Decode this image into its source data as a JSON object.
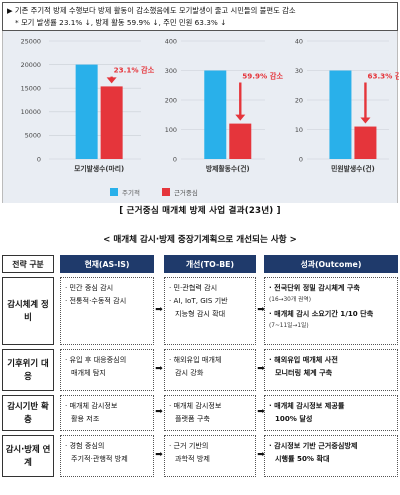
{
  "summary": {
    "line1": "▶ 기존 주기적 방제 수행보다 방제 활동이 감소했음에도 모기발생이 줄고 시민들의 불편도 감소",
    "line2": "* 모기 발생률 23.1% ↓, 방제 활동 59.9% ↓, 주민 민원 63.3% ↓"
  },
  "chart_data": [
    {
      "type": "bar",
      "title": "",
      "xlabel": "모기발생수(마리)",
      "ylabel": "",
      "ylim": [
        0,
        25000
      ],
      "yticks": [
        "0",
        "5000",
        "10000",
        "15000",
        "20000",
        "25000"
      ],
      "categories": [
        "주기적",
        "근거중심"
      ],
      "values": [
        20000,
        15380
      ],
      "annotation": "23.1% 감소"
    },
    {
      "type": "bar",
      "title": "",
      "xlabel": "방제활동수(건)",
      "ylabel": "",
      "ylim": [
        0,
        400
      ],
      "yticks": [
        "0",
        "100",
        "200",
        "300",
        "400"
      ],
      "categories": [
        "주기적",
        "근거중심"
      ],
      "values": [
        300,
        120
      ],
      "annotation": "59.9% 감소"
    },
    {
      "type": "bar",
      "title": "",
      "xlabel": "민원발생수(건)",
      "ylabel": "",
      "ylim": [
        0,
        40
      ],
      "yticks": [
        "0",
        "10",
        "20",
        "30",
        "40"
      ],
      "categories": [
        "주기적",
        "근거중심"
      ],
      "values": [
        30,
        11
      ],
      "annotation": "63.3% 감소"
    }
  ],
  "legend": [
    {
      "label": "주기적",
      "color": "#29b0ea"
    },
    {
      "label": "근거중심",
      "color": "#e5353b"
    }
  ],
  "caption": "[ 근거중심 매개체 방제 사업 결과(23년) ]",
  "subtitle": "< 매개체 감시·방제 중장기계획으로 개선되는 사항 >",
  "table": {
    "headers": [
      "전략 구분",
      "현재(AS-IS)",
      "개선(TO-BE)",
      "성과(Outcome)"
    ],
    "rows": [
      {
        "category": "감시체계 정비",
        "now": [
          "· 민간 중심 감시",
          "· 전통적·수동적 감시"
        ],
        "dev": [
          "· 민·관협력 감시",
          "· AI, IoT, GIS 기반",
          "지능형 감시 확대"
        ],
        "out": [
          "· 전국단위 정밀 감시체계 구축",
          "(16→30개 권역)",
          "· 매개체 감시 소요기간 1/10 단축",
          "(7~11일→1일)"
        ]
      },
      {
        "category": "기후위기 대응",
        "now": [
          "· 유입 후 대응중심의",
          "매개체 탐지"
        ],
        "dev": [
          "· 해외유입 매개체",
          "감시 강화"
        ],
        "out": [
          "· 해외유입 매개체 사전",
          "모니터링 체계 구축"
        ]
      },
      {
        "category": "감시기반 확충",
        "now": [
          "· 매개체 감시정보",
          "활용 저조"
        ],
        "dev": [
          "· 매개체 감시정보",
          "플랫폼 구축"
        ],
        "out": [
          "· 매개체 감시정보 제공률",
          "100% 달성"
        ]
      },
      {
        "category": "감시·방제 연계",
        "now": [
          "· 경험 중심의",
          "주기적·관행적 방제"
        ],
        "dev": [
          "· 근거 기반의",
          "과학적 방제"
        ],
        "out": [
          "· 감시정보 기반 근거중심방제",
          "시행률 50% 확대"
        ]
      }
    ]
  }
}
